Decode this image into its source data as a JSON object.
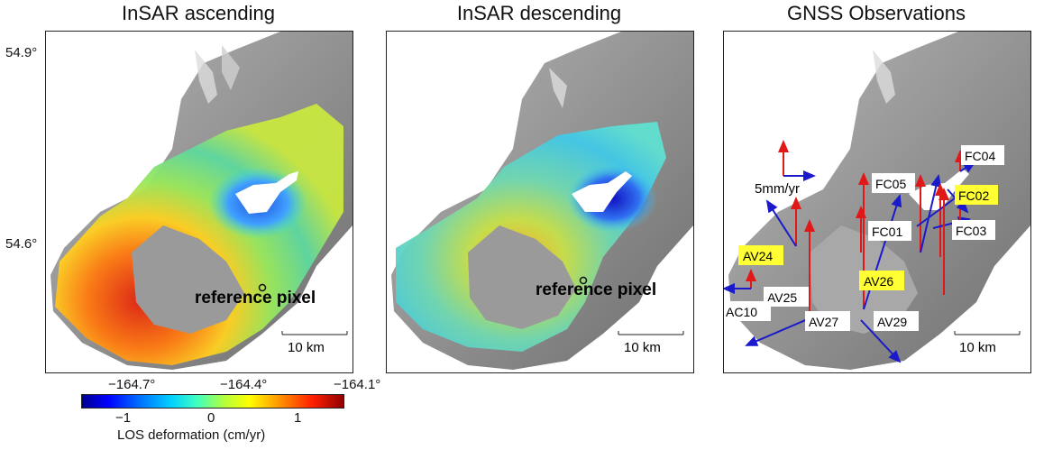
{
  "panels": [
    {
      "title": "InSAR ascending",
      "label": "reference pixel",
      "scale": "10 km"
    },
    {
      "title": "InSAR descending",
      "label": "reference pixel",
      "scale": "10 km"
    },
    {
      "title": "GNSS Observations",
      "scale": "10 km",
      "vector_scale": "5mm/yr"
    }
  ],
  "lat_labels": [
    "54.9°",
    "54.6°"
  ],
  "lon_labels": [
    "−164.7°",
    "−164.4°",
    "−164.1°"
  ],
  "colorbar": {
    "title": "LOS deformation (cm/yr)",
    "ticks": [
      "−1",
      "0",
      "1"
    ],
    "range": [
      -1.5,
      1.5
    ],
    "colors": [
      "#000090",
      "#0000ff",
      "#00d0ff",
      "#b0ff40",
      "#ffff00",
      "#ff2000",
      "#900000"
    ]
  },
  "gnss_sites": [
    {
      "name": "FC04",
      "highlight": false
    },
    {
      "name": "FC05",
      "highlight": false
    },
    {
      "name": "FC02",
      "highlight": true
    },
    {
      "name": "FC01",
      "highlight": false
    },
    {
      "name": "FC03",
      "highlight": false
    },
    {
      "name": "AV24",
      "highlight": true
    },
    {
      "name": "AV26",
      "highlight": true
    },
    {
      "name": "AV25",
      "highlight": false
    },
    {
      "name": "AC10",
      "highlight": false
    },
    {
      "name": "AV27",
      "highlight": false
    },
    {
      "name": "AV29",
      "highlight": false
    }
  ],
  "colors": {
    "horizontal_vector": "#1a1acc",
    "vertical_vector": "#e01818",
    "highlight": "#ffff33",
    "land": "#8a8a8a"
  }
}
